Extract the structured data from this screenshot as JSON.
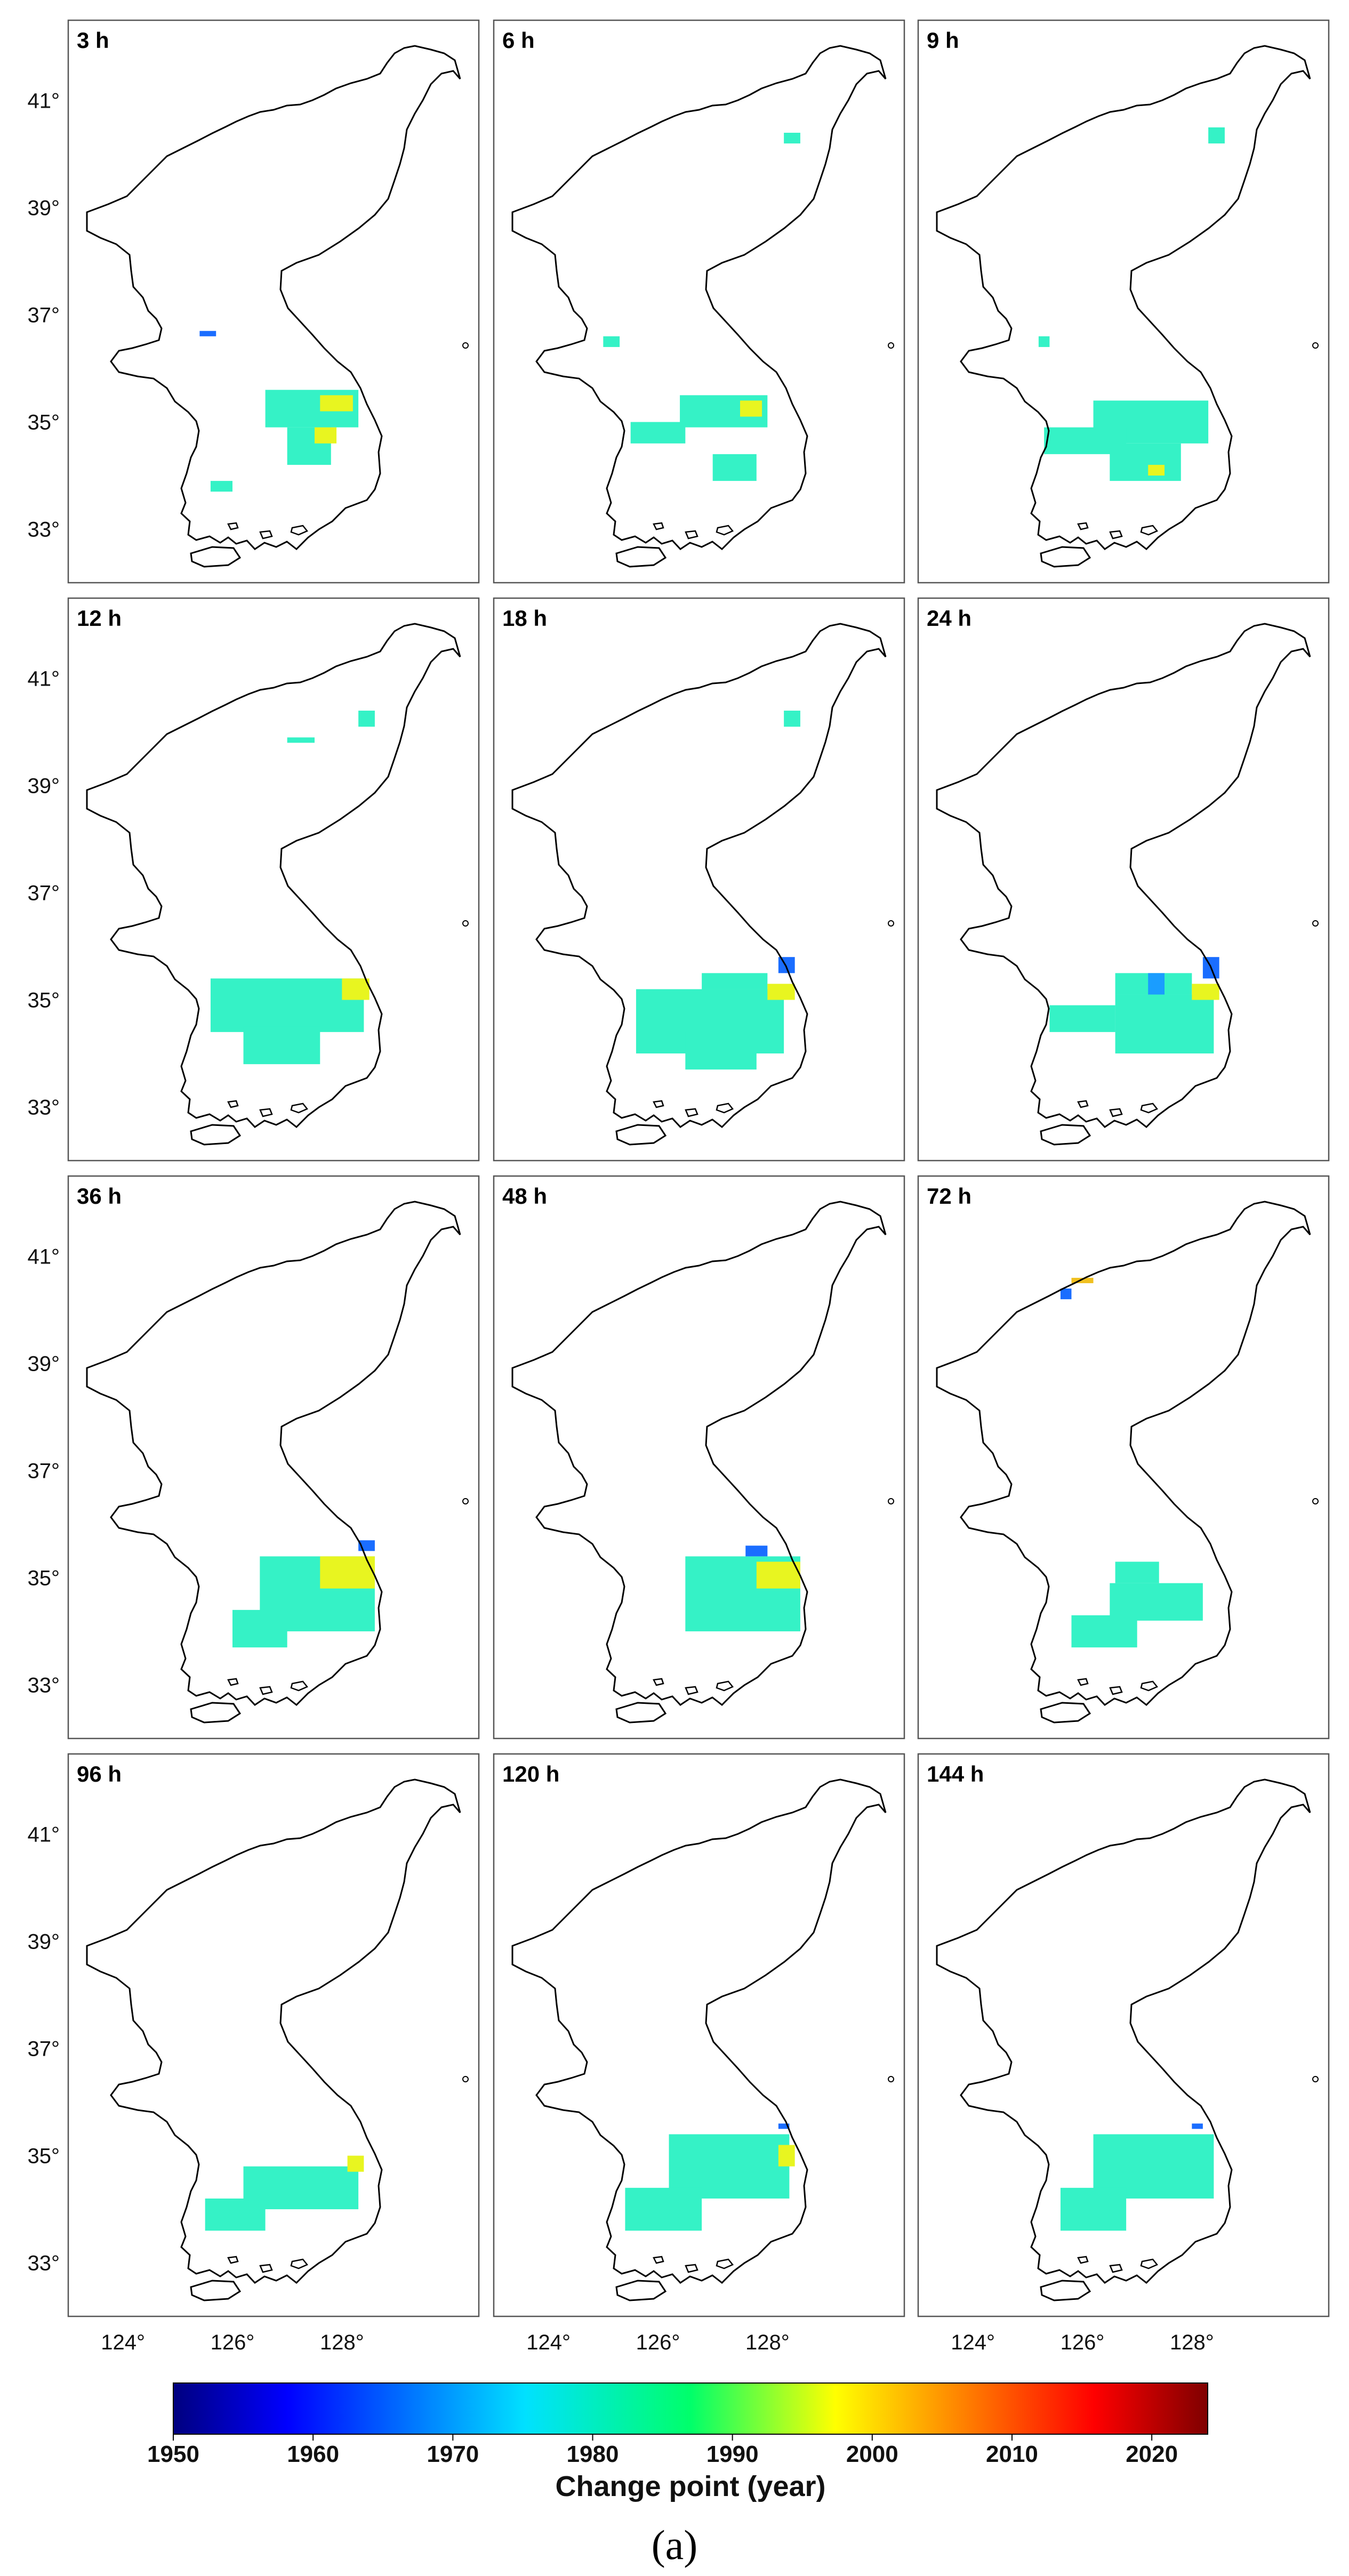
{
  "figure_caption": "(a)",
  "lon_ticks": [
    "124°",
    "126°",
    "128°"
  ],
  "lat_ticks": [
    "41°",
    "39°",
    "37°",
    "35°",
    "33°"
  ],
  "colorbar": {
    "title": "Change point (year)",
    "range": [
      1950,
      2024
    ],
    "tick_labels": [
      "1950",
      "1960",
      "1970",
      "1980",
      "1990",
      "2000",
      "2010",
      "2020"
    ],
    "colormap": "jet"
  },
  "map_extent": {
    "lon": [
      123.0,
      130.5
    ],
    "lat": [
      32.0,
      42.5
    ]
  },
  "panels": [
    {
      "title": "3 h",
      "regions": [
        {
          "lon": [
            126.6,
            128.3
          ],
          "lat": [
            34.9,
            35.6
          ],
          "color": "#35f2c6"
        },
        {
          "lon": [
            127.0,
            127.8
          ],
          "lat": [
            34.2,
            34.9
          ],
          "color": "#35f2c6"
        },
        {
          "lon": [
            127.6,
            128.2
          ],
          "lat": [
            35.2,
            35.5
          ],
          "color": "#e8f520"
        },
        {
          "lon": [
            127.5,
            127.9
          ],
          "lat": [
            34.6,
            34.9
          ],
          "color": "#e8f520"
        },
        {
          "lon": [
            125.4,
            125.7
          ],
          "lat": [
            36.6,
            36.7
          ],
          "color": "#1a6dff"
        },
        {
          "lon": [
            125.6,
            126.0
          ],
          "lat": [
            33.7,
            33.9
          ],
          "color": "#35f2c6"
        }
      ]
    },
    {
      "title": "6 h",
      "regions": [
        {
          "lon": [
            126.4,
            128.0
          ],
          "lat": [
            34.9,
            35.5
          ],
          "color": "#35f2c6"
        },
        {
          "lon": [
            125.5,
            126.5
          ],
          "lat": [
            34.6,
            35.0
          ],
          "color": "#35f2c6"
        },
        {
          "lon": [
            127.0,
            127.8
          ],
          "lat": [
            33.9,
            34.4
          ],
          "color": "#35f2c6"
        },
        {
          "lon": [
            127.5,
            127.9
          ],
          "lat": [
            35.1,
            35.4
          ],
          "color": "#e8f520"
        },
        {
          "lon": [
            125.0,
            125.3
          ],
          "lat": [
            36.4,
            36.6
          ],
          "color": "#35f2c6"
        },
        {
          "lon": [
            128.3,
            128.6
          ],
          "lat": [
            40.2,
            40.4
          ],
          "color": "#35f2c6"
        }
      ]
    },
    {
      "title": "9 h",
      "regions": [
        {
          "lon": [
            126.2,
            128.3
          ],
          "lat": [
            34.6,
            35.4
          ],
          "color": "#35f2c6"
        },
        {
          "lon": [
            125.3,
            126.8
          ],
          "lat": [
            34.4,
            34.9
          ],
          "color": "#35f2c6"
        },
        {
          "lon": [
            126.5,
            127.8
          ],
          "lat": [
            33.9,
            34.6
          ],
          "color": "#35f2c6"
        },
        {
          "lon": [
            127.2,
            127.5
          ],
          "lat": [
            34.0,
            34.2
          ],
          "color": "#e8f520"
        },
        {
          "lon": [
            125.2,
            125.4
          ],
          "lat": [
            36.4,
            36.6
          ],
          "color": "#35f2c6"
        },
        {
          "lon": [
            128.3,
            128.6
          ],
          "lat": [
            40.2,
            40.5
          ],
          "color": "#35f2c6"
        }
      ]
    },
    {
      "title": "12 h",
      "regions": [
        {
          "lon": [
            125.6,
            128.4
          ],
          "lat": [
            34.4,
            35.4
          ],
          "color": "#35f2c6"
        },
        {
          "lon": [
            126.2,
            127.6
          ],
          "lat": [
            33.8,
            34.5
          ],
          "color": "#35f2c6"
        },
        {
          "lon": [
            128.0,
            128.5
          ],
          "lat": [
            35.0,
            35.4
          ],
          "color": "#e8f520"
        },
        {
          "lon": [
            127.0,
            127.5
          ],
          "lat": [
            39.8,
            39.9
          ],
          "color": "#35f2c6"
        },
        {
          "lon": [
            128.3,
            128.6
          ],
          "lat": [
            40.1,
            40.4
          ],
          "color": "#35f2c6"
        }
      ]
    },
    {
      "title": "18 h",
      "regions": [
        {
          "lon": [
            125.6,
            128.3
          ],
          "lat": [
            34.0,
            35.2
          ],
          "color": "#35f2c6"
        },
        {
          "lon": [
            126.5,
            127.8
          ],
          "lat": [
            33.7,
            34.4
          ],
          "color": "#35f2c6"
        },
        {
          "lon": [
            126.8,
            128.0
          ],
          "lat": [
            35.2,
            35.5
          ],
          "color": "#35f2c6"
        },
        {
          "lon": [
            128.0,
            128.5
          ],
          "lat": [
            35.0,
            35.3
          ],
          "color": "#e8f520"
        },
        {
          "lon": [
            128.2,
            128.5
          ],
          "lat": [
            35.5,
            35.8
          ],
          "color": "#1a6dff"
        },
        {
          "lon": [
            128.3,
            128.6
          ],
          "lat": [
            40.1,
            40.4
          ],
          "color": "#35f2c6"
        }
      ]
    },
    {
      "title": "24 h",
      "regions": [
        {
          "lon": [
            126.6,
            128.4
          ],
          "lat": [
            34.0,
            35.1
          ],
          "color": "#35f2c6"
        },
        {
          "lon": [
            125.4,
            126.6
          ],
          "lat": [
            34.4,
            34.9
          ],
          "color": "#35f2c6"
        },
        {
          "lon": [
            126.6,
            128.0
          ],
          "lat": [
            35.1,
            35.5
          ],
          "color": "#35f2c6"
        },
        {
          "lon": [
            127.2,
            127.5
          ],
          "lat": [
            35.1,
            35.5
          ],
          "color": "#1a9dff"
        },
        {
          "lon": [
            128.0,
            128.5
          ],
          "lat": [
            35.0,
            35.3
          ],
          "color": "#e8f520"
        },
        {
          "lon": [
            128.2,
            128.5
          ],
          "lat": [
            35.4,
            35.8
          ],
          "color": "#1a6dff"
        }
      ]
    },
    {
      "title": "36 h",
      "regions": [
        {
          "lon": [
            126.5,
            128.6
          ],
          "lat": [
            34.0,
            35.4
          ],
          "color": "#35f2c6"
        },
        {
          "lon": [
            126.0,
            127.0
          ],
          "lat": [
            33.7,
            34.4
          ],
          "color": "#35f2c6"
        },
        {
          "lon": [
            127.6,
            128.6
          ],
          "lat": [
            34.8,
            35.4
          ],
          "color": "#e8f520"
        },
        {
          "lon": [
            128.3,
            128.6
          ],
          "lat": [
            35.5,
            35.7
          ],
          "color": "#1a6dff"
        }
      ]
    },
    {
      "title": "48 h",
      "regions": [
        {
          "lon": [
            126.5,
            128.6
          ],
          "lat": [
            34.0,
            35.4
          ],
          "color": "#35f2c6"
        },
        {
          "lon": [
            127.8,
            128.6
          ],
          "lat": [
            34.8,
            35.3
          ],
          "color": "#e8f520"
        },
        {
          "lon": [
            127.6,
            128.0
          ],
          "lat": [
            35.4,
            35.6
          ],
          "color": "#1a6dff"
        }
      ]
    },
    {
      "title": "72 h",
      "regions": [
        {
          "lon": [
            126.5,
            128.2
          ],
          "lat": [
            34.2,
            34.9
          ],
          "color": "#35f2c6"
        },
        {
          "lon": [
            125.8,
            127.0
          ],
          "lat": [
            33.7,
            34.3
          ],
          "color": "#35f2c6"
        },
        {
          "lon": [
            126.6,
            127.4
          ],
          "lat": [
            34.9,
            35.3
          ],
          "color": "#35f2c6"
        },
        {
          "lon": [
            125.8,
            126.2
          ],
          "lat": [
            40.5,
            40.6
          ],
          "color": "#f0c020"
        },
        {
          "lon": [
            125.6,
            125.8
          ],
          "lat": [
            40.2,
            40.4
          ],
          "color": "#1a6dff"
        }
      ]
    },
    {
      "title": "96 h",
      "regions": [
        {
          "lon": [
            126.2,
            128.3
          ],
          "lat": [
            34.0,
            34.8
          ],
          "color": "#35f2c6"
        },
        {
          "lon": [
            125.5,
            126.6
          ],
          "lat": [
            33.6,
            34.2
          ],
          "color": "#35f2c6"
        },
        {
          "lon": [
            128.1,
            128.4
          ],
          "lat": [
            34.7,
            35.0
          ],
          "color": "#e8f520"
        }
      ]
    },
    {
      "title": "120 h",
      "regions": [
        {
          "lon": [
            126.2,
            128.4
          ],
          "lat": [
            34.2,
            35.4
          ],
          "color": "#35f2c6"
        },
        {
          "lon": [
            125.4,
            126.8
          ],
          "lat": [
            33.6,
            34.4
          ],
          "color": "#35f2c6"
        },
        {
          "lon": [
            128.2,
            128.5
          ],
          "lat": [
            34.8,
            35.2
          ],
          "color": "#e8f520"
        },
        {
          "lon": [
            128.2,
            128.4
          ],
          "lat": [
            35.5,
            35.6
          ],
          "color": "#1a6dff"
        }
      ]
    },
    {
      "title": "144 h",
      "regions": [
        {
          "lon": [
            126.2,
            128.4
          ],
          "lat": [
            34.2,
            35.4
          ],
          "color": "#35f2c6"
        },
        {
          "lon": [
            125.6,
            126.8
          ],
          "lat": [
            33.6,
            34.4
          ],
          "color": "#35f2c6"
        },
        {
          "lon": [
            128.0,
            128.2
          ],
          "lat": [
            35.5,
            35.6
          ],
          "color": "#1a6dff"
        }
      ]
    }
  ]
}
